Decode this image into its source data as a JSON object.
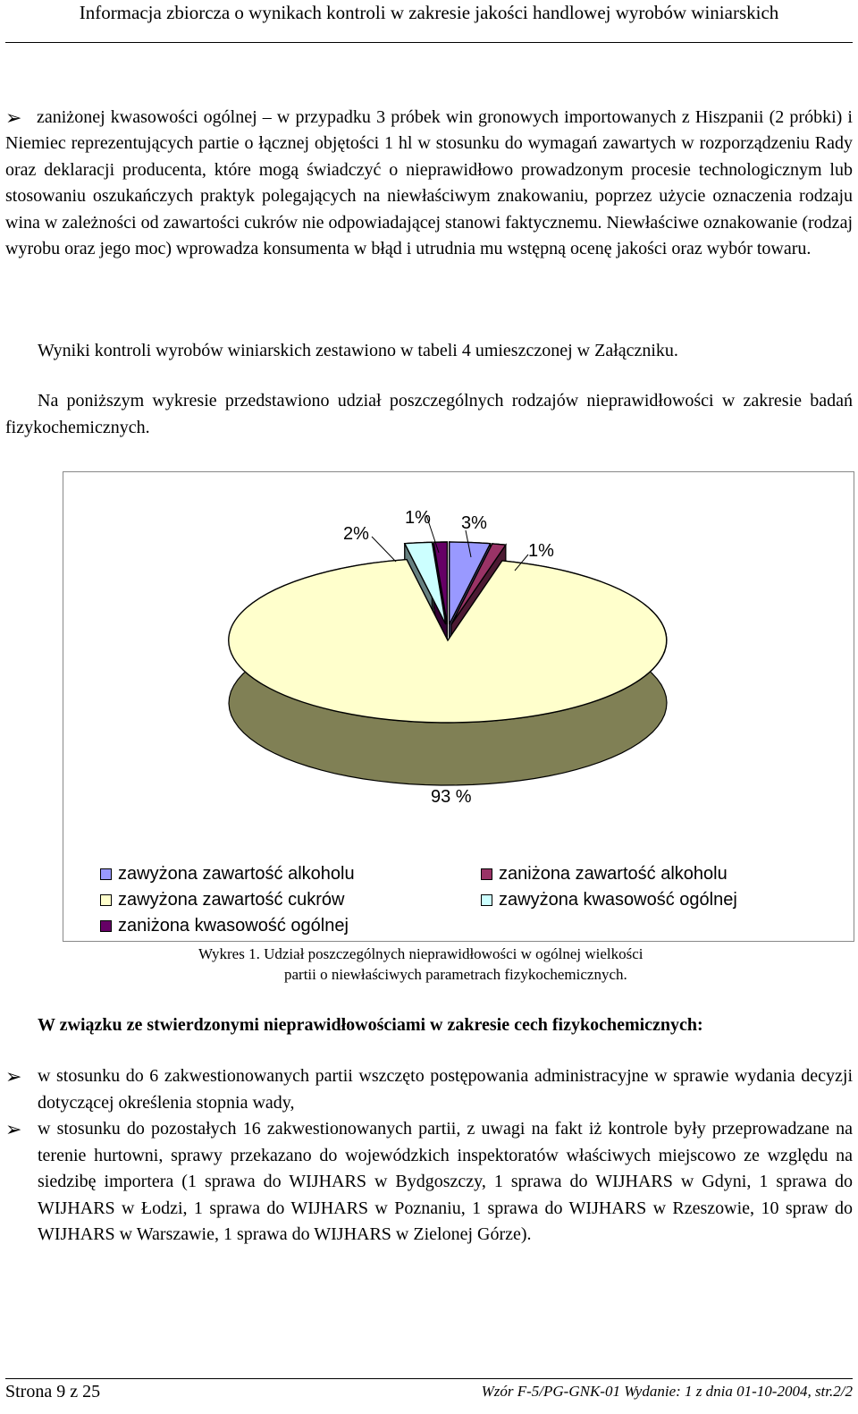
{
  "header": {
    "title": "Informacja zbiorcza o wynikach kontroli w zakresie jakości handlowej wyrobów winiarskich"
  },
  "body": {
    "bullet_first": "zaniżonej kwasowości ogólnej – w przypadku 3 próbek win gronowych importowanych z Hiszpanii (2 próbki) i Niemiec reprezentujących partie o łącznej objętości 1 hl w stosunku do wymagań zawartych w rozporządzeniu Rady oraz deklaracji producenta, które mogą świadczyć o nieprawidłowo prowadzonym procesie technologicznym lub stosowaniu oszukańczych praktyk polegających na niewłaściwym znakowaniu, poprzez użycie oznaczenia rodzaju wina w zależności od zawartości cukrów nie odpowiadającej stanowi faktycznemu. Niewłaściwe oznakowanie (rodzaj wyrobu oraz jego moc) wprowadza konsumenta w błąd i utrudnia mu wstępną ocenę jakości oraz wybór towaru.",
    "para_results": "Wyniki kontroli wyrobów winiarskich zestawiono w tabeli 4 umieszczonej w Załączniku.",
    "para_chart_intro": "Na poniższym wykresie przedstawiono udział poszczególnych rodzajów nieprawidłowości w zakresie badań fizykochemicznych.",
    "heading_bold": "W związku ze stwierdzonymi nieprawidłowościami w zakresie cech fizykochemicznych:",
    "bullet_a": "w stosunku do 6 zakwestionowanych partii wszczęto postępowania administracyjne w sprawie wydania decyzji dotyczącej określenia stopnia wady,",
    "bullet_b": "w stosunku do pozostałych 16 zakwestionowanych partii, z uwagi na fakt iż kontrole były przeprowadzane na terenie hurtowni, sprawy przekazano do wojewódzkich inspektoratów właściwych miejscowo ze względu na siedzibę importera (1 sprawa do WIJHARS w Bydgoszczy, 1 sprawa do WIJHARS w Gdyni, 1 sprawa do WIJHARS w Łodzi, 1 sprawa do WIJHARS w Poznaniu, 1 sprawa do WIJHARS w Rzeszowie, 10 spraw do WIJHARS w Warszawie, 1 sprawa do WIJHARS w Zielonej Górze)."
  },
  "chart_caption_line1": "Wykres 1. Udział poszczególnych nieprawidłowości w ogólnej wielkości",
  "chart_caption_line2": "partii o niewłaściwych parametrach fizykochemicznych.",
  "chart_data": {
    "type": "pie",
    "style": "3d-exploded",
    "labels": [
      "zawyżona zawartość alkoholu",
      "zaniżona zawartość alkoholu",
      "zawyżona zawartość cukrów",
      "zawyżona kwasowość ogólnej",
      "zaniżona kwasowość ogólnej"
    ],
    "values": [
      3,
      1,
      93,
      2,
      1
    ],
    "data_labels": [
      "3%",
      "1%",
      "93 %",
      "2%",
      "1%"
    ],
    "colors": [
      "#9999ff",
      "#993366",
      "#ffffcc",
      "#ccffff",
      "#660066"
    ],
    "legend_position": "bottom"
  },
  "footer": {
    "page": "Strona 9 z 25",
    "form": "Wzór F-5/PG-GNK-01 Wydanie: 1 z dnia 01-10-2004, str.2/2"
  },
  "icons": {
    "bullet": "arrow-bullet-icon"
  }
}
